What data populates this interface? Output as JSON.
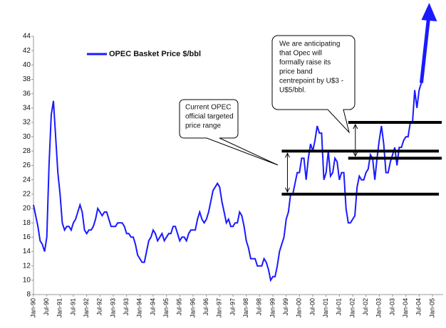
{
  "chart_data": {
    "type": "line",
    "legend": "top-left",
    "ylim": [
      8,
      44
    ],
    "yticks": [
      8,
      10,
      12,
      14,
      16,
      18,
      20,
      22,
      24,
      26,
      28,
      30,
      32,
      34,
      36,
      38,
      40,
      42,
      44
    ],
    "xticks": [
      "Jan-90",
      "Jul-90",
      "Jan-91",
      "Jul-91",
      "Jan-92",
      "Jul-92",
      "Jan-93",
      "Jul-93",
      "Jan-94",
      "Jul-94",
      "Jan-95",
      "Jul-95",
      "Jan-96",
      "Jul-96",
      "Jan-97",
      "Jul-97",
      "Jan-98",
      "Jul-98",
      "Jan-99",
      "Jul-99",
      "Jan-00",
      "Jul-00",
      "Jan-01",
      "Jul-01",
      "Jan-02",
      "Jul-02",
      "Jan-03",
      "Jul-03",
      "Jan-04",
      "Jul-04",
      "Jan-05"
    ],
    "x": [
      "Jan-90",
      "Feb-90",
      "Mar-90",
      "Apr-90",
      "May-90",
      "Jun-90",
      "Jul-90",
      "Aug-90",
      "Sep-90",
      "Oct-90",
      "Nov-90",
      "Dec-90",
      "Jan-91",
      "Feb-91",
      "Mar-91",
      "Apr-91",
      "May-91",
      "Jun-91",
      "Jul-91",
      "Aug-91",
      "Sep-91",
      "Oct-91",
      "Nov-91",
      "Dec-91",
      "Jan-92",
      "Feb-92",
      "Mar-92",
      "Apr-92",
      "May-92",
      "Jun-92",
      "Jul-92",
      "Aug-92",
      "Sep-92",
      "Oct-92",
      "Nov-92",
      "Dec-92",
      "Jan-93",
      "Feb-93",
      "Mar-93",
      "Apr-93",
      "May-93",
      "Jun-93",
      "Jul-93",
      "Aug-93",
      "Sep-93",
      "Oct-93",
      "Nov-93",
      "Dec-93",
      "Jan-94",
      "Feb-94",
      "Mar-94",
      "Apr-94",
      "May-94",
      "Jun-94",
      "Jul-94",
      "Aug-94",
      "Sep-94",
      "Oct-94",
      "Nov-94",
      "Dec-94",
      "Jan-95",
      "Feb-95",
      "Mar-95",
      "Apr-95",
      "May-95",
      "Jun-95",
      "Jul-95",
      "Aug-95",
      "Sep-95",
      "Oct-95",
      "Nov-95",
      "Dec-95",
      "Jan-96",
      "Feb-96",
      "Mar-96",
      "Apr-96",
      "May-96",
      "Jun-96",
      "Jul-96",
      "Aug-96",
      "Sep-96",
      "Oct-96",
      "Nov-96",
      "Dec-96",
      "Jan-97",
      "Feb-97",
      "Mar-97",
      "Apr-97",
      "May-97",
      "Jun-97",
      "Jul-97",
      "Aug-97",
      "Sep-97",
      "Oct-97",
      "Nov-97",
      "Dec-97",
      "Jan-98",
      "Feb-98",
      "Mar-98",
      "Apr-98",
      "May-98",
      "Jun-98",
      "Jul-98",
      "Aug-98",
      "Sep-98",
      "Oct-98",
      "Nov-98",
      "Dec-98",
      "Jan-99",
      "Feb-99",
      "Mar-99",
      "Apr-99",
      "May-99",
      "Jun-99",
      "Jul-99",
      "Aug-99",
      "Sep-99",
      "Oct-99",
      "Nov-99",
      "Dec-99",
      "Jan-00",
      "Feb-00",
      "Mar-00",
      "Apr-00",
      "May-00",
      "Jun-00",
      "Jul-00",
      "Aug-00",
      "Sep-00",
      "Oct-00",
      "Nov-00",
      "Dec-00",
      "Jan-01",
      "Feb-01",
      "Mar-01",
      "Apr-01",
      "May-01",
      "Jun-01",
      "Jul-01",
      "Aug-01",
      "Sep-01",
      "Oct-01",
      "Nov-01",
      "Dec-01",
      "Jan-02",
      "Feb-02",
      "Mar-02",
      "Apr-02",
      "May-02",
      "Jun-02",
      "Jul-02",
      "Aug-02",
      "Sep-02",
      "Oct-02",
      "Nov-02",
      "Dec-02",
      "Jan-03",
      "Feb-03",
      "Mar-03",
      "Apr-03",
      "May-03",
      "Jun-03",
      "Jul-03",
      "Aug-03",
      "Sep-03",
      "Oct-03",
      "Nov-03",
      "Dec-03",
      "Jan-04",
      "Feb-04",
      "Mar-04",
      "Apr-04",
      "May-04",
      "Jun-04",
      "Jul-04",
      "Aug-04",
      "Sep-04",
      "Oct-04",
      "Nov-04",
      "Dec-04",
      "Jan-05"
    ],
    "series": [
      {
        "name": "OPEC Basket Price $/bbl",
        "color": "#1a1aff",
        "values": [
          20.5,
          19,
          17.5,
          15.5,
          15,
          14,
          16,
          26,
          33,
          35,
          30,
          25,
          22,
          18,
          17,
          17.5,
          17.5,
          17,
          18,
          18.5,
          19.5,
          20.5,
          19.5,
          17,
          16.5,
          17,
          17,
          17.5,
          18.5,
          20,
          19.5,
          19,
          19.5,
          19.5,
          18.5,
          17.5,
          17.5,
          17.5,
          18,
          18,
          18,
          17.5,
          16.5,
          16.5,
          16,
          16,
          15,
          13.5,
          13,
          12.5,
          12.5,
          14,
          15.5,
          16,
          17,
          16.5,
          15.5,
          16,
          16.5,
          15.5,
          16,
          16.5,
          16.5,
          17.5,
          17.5,
          16.5,
          15.5,
          16,
          16,
          15.5,
          16.5,
          17,
          17,
          17,
          18.5,
          19.5,
          18.5,
          18,
          18.5,
          19.5,
          21,
          22.5,
          23,
          23.5,
          23,
          21,
          19.5,
          18,
          18.5,
          17.5,
          17.5,
          18,
          18,
          19.5,
          19,
          17.5,
          15.5,
          14.5,
          13,
          13,
          13,
          12,
          12,
          12,
          13,
          12.5,
          11.5,
          10,
          10.5,
          10.5,
          12,
          14,
          15,
          16,
          18.5,
          19.5,
          22,
          22,
          23.5,
          25,
          25,
          27,
          27,
          24,
          27,
          29,
          28,
          29.5,
          31.5,
          30.5,
          30.5,
          24,
          25,
          28,
          24.5,
          25,
          27,
          26.5,
          24,
          25,
          25,
          20,
          18,
          18,
          18.5,
          19,
          23,
          24.5,
          24,
          24,
          25,
          25.5,
          27.5,
          27,
          24,
          27,
          29.5,
          31.5,
          29,
          25,
          25,
          26.5,
          27.5,
          28.5,
          26,
          28.5,
          28.5,
          29.5,
          30,
          30,
          32,
          32,
          36.5,
          34,
          36.5,
          37.5,
          null,
          null,
          null,
          null,
          null
        ]
      }
    ],
    "bands": [
      {
        "from": "May-99",
        "low": 22,
        "high": 28
      },
      {
        "from": "Nov-01",
        "low": 27,
        "high": 32
      }
    ],
    "annotations": [
      {
        "lines": [
          "Current OPEC",
          "official targeted",
          "price range"
        ]
      },
      {
        "lines": [
          "We are anticipating",
          "that Opec will",
          "formally raise its",
          "price band",
          "centrepoint by U$3 -",
          "U$5/bbl."
        ]
      }
    ]
  }
}
